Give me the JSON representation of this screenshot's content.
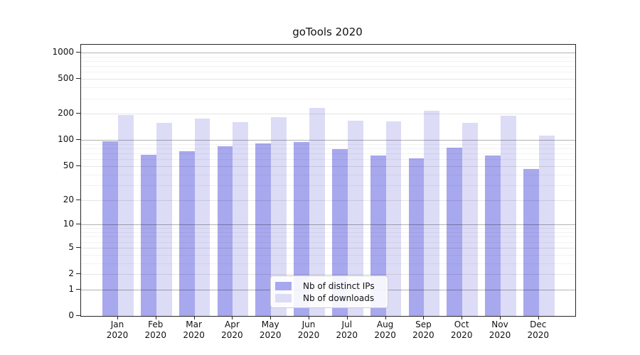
{
  "title": "goTools 2020",
  "chart_data": {
    "type": "bar",
    "title": "goTools 2020",
    "categories": [
      "Jan 2020",
      "Feb 2020",
      "Mar 2020",
      "Apr 2020",
      "May 2020",
      "Jun 2020",
      "Jul 2020",
      "Aug 2020",
      "Sep 2020",
      "Oct 2020",
      "Nov 2020",
      "Dec 2020"
    ],
    "series": [
      {
        "name": "Nb of distinct IPs",
        "color": "#a8a8ee",
        "values": [
          97,
          67,
          74,
          84,
          91,
          95,
          78,
          66,
          61,
          82,
          66,
          46
        ]
      },
      {
        "name": "Nb of downloads",
        "color": "#dcdcf7",
        "values": [
          193,
          157,
          175,
          161,
          183,
          232,
          168,
          165,
          217,
          159,
          189,
          112
        ]
      }
    ],
    "xlabel": "",
    "ylabel": "",
    "y_scale": "symlog (log1p)",
    "y_ticks": [
      0,
      1,
      2,
      5,
      10,
      20,
      50,
      100,
      200,
      500,
      1000
    ],
    "ylim": [
      0,
      1230
    ],
    "grid": "horizontal, major and minor, drawn over bars",
    "legend_position": "lower center inside plot"
  },
  "colors": {
    "background": "#ffffff",
    "bar_distinct_ips": "#a8a8ee",
    "bar_downloads": "#dcdcf7",
    "spine": "#262626",
    "grid_major": "rgba(0,0,0,0.30)",
    "grid_mid": "rgba(0,0,0,0.10)",
    "grid_minor": "rgba(0,0,0,0.05)",
    "text": "#111111",
    "legend_border": "#cccccc"
  }
}
